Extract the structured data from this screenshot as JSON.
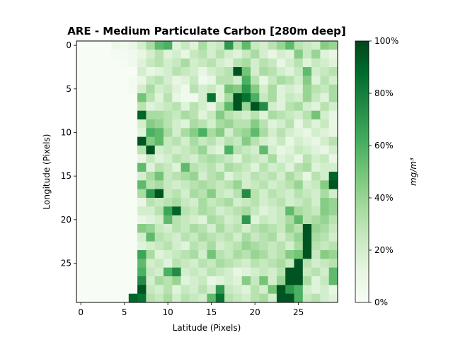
{
  "chart_data": {
    "type": "heatmap",
    "title": "ARE - Medium Particulate Carbon [280m deep]",
    "xlabel": "Latitude (Pixels)",
    "ylabel": "Longitude (Pixels)",
    "colorbar_label": "mg/m³",
    "colormap": "Greens",
    "color_low": "#f7fcf5",
    "color_high": "#00441b",
    "vmin": 0,
    "vmax": 1,
    "xlim": [
      -0.5,
      29.5
    ],
    "ylim": [
      29.5,
      -0.5
    ],
    "xticks": [
      0,
      5,
      10,
      15,
      20,
      25
    ],
    "yticks": [
      0,
      5,
      10,
      15,
      20,
      25
    ],
    "colorbar_ticks": [
      "0%",
      "20%",
      "40%",
      "60%",
      "80%",
      "100%"
    ],
    "rows": 30,
    "cols": 30,
    "values": [
      [
        0,
        0,
        0,
        0,
        0.08,
        0.05,
        0.1,
        0.2,
        0.35,
        0.55,
        0.6,
        0.15,
        0.25,
        0.15,
        0.35,
        0.2,
        0.25,
        0.7,
        0.3,
        0.55,
        0.25,
        0.2,
        0.3,
        0.4,
        0.55,
        0.3,
        0.25,
        0.2,
        0.45,
        0.4
      ],
      [
        0,
        0,
        0,
        0,
        0.02,
        0.03,
        0.05,
        0.1,
        0.2,
        0.3,
        0.15,
        0.2,
        0.1,
        0.25,
        0.3,
        0.2,
        0.3,
        0.2,
        0.15,
        0.25,
        0.35,
        0.2,
        0.1,
        0.2,
        0.15,
        0.45,
        0.25,
        0.4,
        0.15,
        0.1
      ],
      [
        0,
        0,
        0,
        0,
        0,
        0.02,
        0.05,
        0.15,
        0.25,
        0.3,
        0.2,
        0.25,
        0.35,
        0.2,
        0.25,
        0.3,
        0.2,
        0.15,
        0.3,
        0.35,
        0.2,
        0.3,
        0.25,
        0.1,
        0.2,
        0.3,
        0.15,
        0.25,
        0.2,
        0.15
      ],
      [
        0,
        0,
        0,
        0,
        0,
        0,
        0,
        0.2,
        0.1,
        0.15,
        0.2,
        0.3,
        0.25,
        0.2,
        0.1,
        0.2,
        0.25,
        0.3,
        0.95,
        0.5,
        0.2,
        0.35,
        0.3,
        0.2,
        0.15,
        0.25,
        0.55,
        0.2,
        0.25,
        0.3
      ],
      [
        0,
        0,
        0,
        0,
        0,
        0,
        0.03,
        0.1,
        0.25,
        0.3,
        0.2,
        0.1,
        0.15,
        0.25,
        0.05,
        0.1,
        0.3,
        0.3,
        0.2,
        0.6,
        0.3,
        0.1,
        0.25,
        0.35,
        0.3,
        0.2,
        0.45,
        0.15,
        0.3,
        0.2
      ],
      [
        0,
        0,
        0,
        0,
        0,
        0,
        0.03,
        0.2,
        0.35,
        0.2,
        0.25,
        0.15,
        0.05,
        0.3,
        0.2,
        0.25,
        0.15,
        0.5,
        0.45,
        0.7,
        0.45,
        0.2,
        0.35,
        0.15,
        0.2,
        0.15,
        0.4,
        0.3,
        0.25,
        0.35
      ],
      [
        0,
        0,
        0,
        0,
        0,
        0,
        0,
        0.5,
        0.3,
        0.15,
        0.3,
        0.1,
        0.05,
        0.05,
        0.2,
        0.85,
        0.15,
        0.35,
        0.95,
        0.85,
        0.6,
        0.25,
        0.35,
        0.15,
        0.25,
        0.2,
        0.4,
        0.25,
        0.15,
        0.35
      ],
      [
        0,
        0,
        0,
        0,
        0,
        0,
        0,
        0.3,
        0.15,
        0.2,
        0.25,
        0.3,
        0.15,
        0.3,
        0.2,
        0.1,
        0.3,
        0.55,
        0.95,
        0.4,
        0.95,
        0.75,
        0.2,
        0.15,
        0.3,
        0.35,
        0.2,
        0.15,
        0.3,
        0.2
      ],
      [
        0,
        0,
        0,
        0,
        0,
        0,
        0,
        0.9,
        0.35,
        0.35,
        0.3,
        0.25,
        0.35,
        0.3,
        0.15,
        0.25,
        0.45,
        0.3,
        0.25,
        0.2,
        0.3,
        0.15,
        0.35,
        0.3,
        0.25,
        0.2,
        0.3,
        0.5,
        0.2,
        0.1
      ],
      [
        0,
        0,
        0,
        0,
        0,
        0,
        0,
        0.2,
        0.45,
        0.4,
        0.3,
        0.2,
        0.15,
        0.35,
        0.3,
        0.2,
        0.35,
        0.4,
        0.3,
        0.3,
        0.45,
        0.3,
        0.15,
        0.2,
        0.3,
        0.1,
        0.25,
        0.15,
        0.25,
        0.1
      ],
      [
        0,
        0,
        0,
        0,
        0,
        0,
        0,
        0.15,
        0.6,
        0.55,
        0.35,
        0.2,
        0.35,
        0.45,
        0.6,
        0.35,
        0.45,
        0.2,
        0.35,
        0.4,
        0.55,
        0.35,
        0.2,
        0.3,
        0.2,
        0.15,
        0.1,
        0.2,
        0.15,
        0.1
      ],
      [
        0,
        0,
        0,
        0,
        0,
        0,
        0,
        0.95,
        0.45,
        0.55,
        0.25,
        0.3,
        0.2,
        0.35,
        0.25,
        0.3,
        0.2,
        0.3,
        0.25,
        0.45,
        0.3,
        0.2,
        0.15,
        0.25,
        0.1,
        0.2,
        0.15,
        0.1,
        0.2,
        0.3
      ],
      [
        0,
        0,
        0,
        0,
        0,
        0,
        0,
        0.3,
        0.95,
        0.2,
        0.25,
        0.2,
        0.25,
        0.3,
        0.4,
        0.2,
        0.15,
        0.6,
        0.3,
        0.25,
        0.2,
        0.55,
        0.2,
        0.1,
        0.15,
        0.25,
        0.2,
        0.15,
        0.1,
        0.2
      ],
      [
        0,
        0,
        0,
        0,
        0,
        0,
        0,
        0.1,
        0.25,
        0.15,
        0.2,
        0.3,
        0.25,
        0.2,
        0.3,
        0.35,
        0.3,
        0.25,
        0.15,
        0.3,
        0.25,
        0.2,
        0.35,
        0.15,
        0.2,
        0.1,
        0.3,
        0.2,
        0.25,
        0.1
      ],
      [
        0,
        0,
        0,
        0,
        0,
        0,
        0,
        0.55,
        0.15,
        0.3,
        0.25,
        0.15,
        0.55,
        0.3,
        0.25,
        0.3,
        0.2,
        0.35,
        0.3,
        0.25,
        0.15,
        0.3,
        0.2,
        0.25,
        0.15,
        0.3,
        0.35,
        0.15,
        0.2,
        0.2
      ],
      [
        0,
        0,
        0,
        0,
        0,
        0,
        0,
        0.2,
        0.35,
        0.5,
        0.25,
        0.3,
        0.35,
        0.4,
        0.2,
        0.3,
        0.35,
        0.15,
        0.25,
        0.2,
        0.3,
        0.25,
        0.3,
        0.2,
        0.35,
        0.25,
        0.1,
        0.3,
        0.2,
        0.9
      ],
      [
        0,
        0,
        0,
        0,
        0,
        0,
        0,
        0.55,
        0.3,
        0.35,
        0.25,
        0.2,
        0.25,
        0.3,
        0.35,
        0.3,
        0.25,
        0.3,
        0.4,
        0.2,
        0.25,
        0.3,
        0.2,
        0.25,
        0.3,
        0.4,
        0.2,
        0.25,
        0.45,
        0.95
      ],
      [
        0,
        0,
        0,
        0,
        0,
        0,
        0,
        0.35,
        0.7,
        0.95,
        0.25,
        0.3,
        0.2,
        0.35,
        0.3,
        0.45,
        0.25,
        0.2,
        0.3,
        0.75,
        0.3,
        0.2,
        0.3,
        0.25,
        0.2,
        0.3,
        0.25,
        0.2,
        0.35,
        0.2
      ],
      [
        0,
        0,
        0,
        0,
        0,
        0,
        0,
        0.1,
        0.3,
        0.25,
        0.3,
        0.35,
        0.25,
        0.2,
        0.35,
        0.25,
        0.3,
        0.35,
        0.2,
        0.25,
        0.3,
        0.2,
        0.25,
        0.3,
        0.2,
        0.25,
        0.3,
        0.2,
        0.45,
        0.4
      ],
      [
        0,
        0,
        0,
        0,
        0,
        0,
        0,
        0.2,
        0.2,
        0.3,
        0.65,
        0.9,
        0.3,
        0.25,
        0.35,
        0.3,
        0.2,
        0.25,
        0.3,
        0.35,
        0.25,
        0.15,
        0.2,
        0.25,
        0.55,
        0.35,
        0.3,
        0.25,
        0.45,
        0.4
      ],
      [
        0,
        0,
        0,
        0,
        0,
        0,
        0,
        0.1,
        0.15,
        0.2,
        0.55,
        0.3,
        0.25,
        0.2,
        0.15,
        0.35,
        0.3,
        0.2,
        0.25,
        0.7,
        0.15,
        0.25,
        0.2,
        0.25,
        0.35,
        0.55,
        0.3,
        0.35,
        0.4,
        0.3
      ],
      [
        0,
        0,
        0,
        0,
        0,
        0,
        0,
        0.45,
        0.4,
        0.25,
        0.2,
        0.3,
        0.25,
        0.35,
        0.3,
        0.2,
        0.35,
        0.25,
        0.3,
        0.2,
        0.3,
        0.35,
        0.3,
        0.25,
        0.4,
        0.3,
        0.95,
        0.4,
        0.35,
        0.25
      ],
      [
        0,
        0,
        0,
        0,
        0,
        0,
        0,
        0.2,
        0.55,
        0.3,
        0.25,
        0.2,
        0.3,
        0.25,
        0.35,
        0.3,
        0.25,
        0.3,
        0.2,
        0.35,
        0.25,
        0.3,
        0.35,
        0.2,
        0.3,
        0.4,
        0.95,
        0.35,
        0.3,
        0.2
      ],
      [
        0,
        0,
        0,
        0,
        0,
        0,
        0,
        0.15,
        0.2,
        0.25,
        0.3,
        0.2,
        0.15,
        0.3,
        0.25,
        0.35,
        0.2,
        0.25,
        0.3,
        0.4,
        0.35,
        0.3,
        0.25,
        0.3,
        0.2,
        0.35,
        0.95,
        0.3,
        0.25,
        0.3
      ],
      [
        0,
        0,
        0,
        0,
        0,
        0,
        0,
        0.65,
        0.35,
        0.15,
        0.2,
        0.25,
        0.3,
        0.35,
        0.2,
        0.5,
        0.3,
        0.25,
        0.35,
        0.3,
        0.4,
        0.35,
        0.25,
        0.3,
        0.45,
        0.5,
        0.95,
        0.25,
        0.45,
        0.4
      ],
      [
        0,
        0,
        0,
        0,
        0,
        0,
        0,
        0.55,
        0.2,
        0.25,
        0.15,
        0.3,
        0.25,
        0.2,
        0.3,
        0.25,
        0.35,
        0.3,
        0.25,
        0.2,
        0.3,
        0.25,
        0.3,
        0.35,
        0.25,
        0.95,
        0.3,
        0.2,
        0.25,
        0.3
      ],
      [
        0,
        0,
        0,
        0,
        0,
        0,
        0,
        0.6,
        0.25,
        0.2,
        0.6,
        0.75,
        0.2,
        0.25,
        0.2,
        0.3,
        0.25,
        0.2,
        0.1,
        0.15,
        0.2,
        0.25,
        0.2,
        0.3,
        0.95,
        0.95,
        0.25,
        0.3,
        0.2,
        0.55
      ],
      [
        0,
        0,
        0,
        0,
        0,
        0,
        0,
        0.75,
        0.2,
        0.35,
        0.3,
        0.4,
        0.15,
        0.2,
        0.25,
        0.1,
        0.15,
        0.2,
        0.15,
        0.45,
        0.25,
        0.5,
        0.2,
        0.4,
        0.95,
        0.95,
        0.35,
        0.15,
        0.25,
        0.55
      ],
      [
        0,
        0,
        0,
        0,
        0,
        0,
        0,
        0.95,
        0.25,
        0.2,
        0.3,
        0.15,
        0.25,
        0.2,
        0.3,
        0.2,
        0.7,
        0.25,
        0.2,
        0.15,
        0.3,
        0.2,
        0.5,
        0.95,
        0.7,
        0.6,
        0.2,
        0.15,
        0.2,
        0.1
      ],
      [
        0,
        0,
        0,
        0,
        0,
        0,
        0.9,
        0.85,
        0.3,
        0.25,
        0.35,
        0.2,
        0.3,
        0.25,
        0.2,
        0.55,
        0.85,
        0.3,
        0.25,
        0.2,
        0.3,
        0.35,
        0.2,
        0.95,
        0.95,
        0.6,
        0.25,
        0.3,
        0.2,
        0.15
      ]
    ]
  }
}
